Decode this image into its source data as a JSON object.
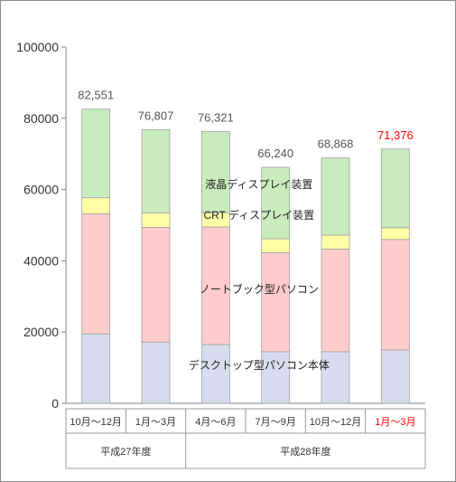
{
  "chart_data": {
    "type": "bar",
    "stacked": true,
    "categories": [
      "10月～12月",
      "1月～3月",
      "4月～6月",
      "7月～9月",
      "10月～12月",
      "1月～3月"
    ],
    "highlight_index": 5,
    "highlight_color": "#ff0000",
    "totals": [
      82551,
      76807,
      76321,
      66240,
      68868,
      71376
    ],
    "total_labels": [
      "82,551",
      "76,807",
      "76,321",
      "66,240",
      "68,868",
      "71,376"
    ],
    "groups": [
      {
        "label": "平成27年度",
        "span": [
          0,
          1
        ]
      },
      {
        "label": "平成28年度",
        "span": [
          2,
          5
        ]
      }
    ],
    "ylim": [
      0,
      100000
    ],
    "yticks": [
      "0",
      "20000",
      "40000",
      "60000",
      "80000",
      "100000"
    ],
    "grid": false,
    "series": [
      {
        "name": "デスクトップ型パソコン本体",
        "color": "#d8dcee",
        "values": [
          19500,
          17200,
          16500,
          14500,
          14500,
          15000
        ]
      },
      {
        "name": "ノートブック型パソコン",
        "color": "#ffcccc",
        "values": [
          33700,
          32200,
          33000,
          27800,
          28800,
          31000
        ]
      },
      {
        "name": "CRT ディスプレイ装置",
        "color": "#ffffa8",
        "values": [
          4500,
          4000,
          4000,
          3900,
          3900,
          3300
        ]
      },
      {
        "name": "液晶ディスプレイ装置",
        "color": "#c9ecbe",
        "values": [
          24851,
          23407,
          22821,
          20040,
          21668,
          22076
        ]
      }
    ]
  }
}
